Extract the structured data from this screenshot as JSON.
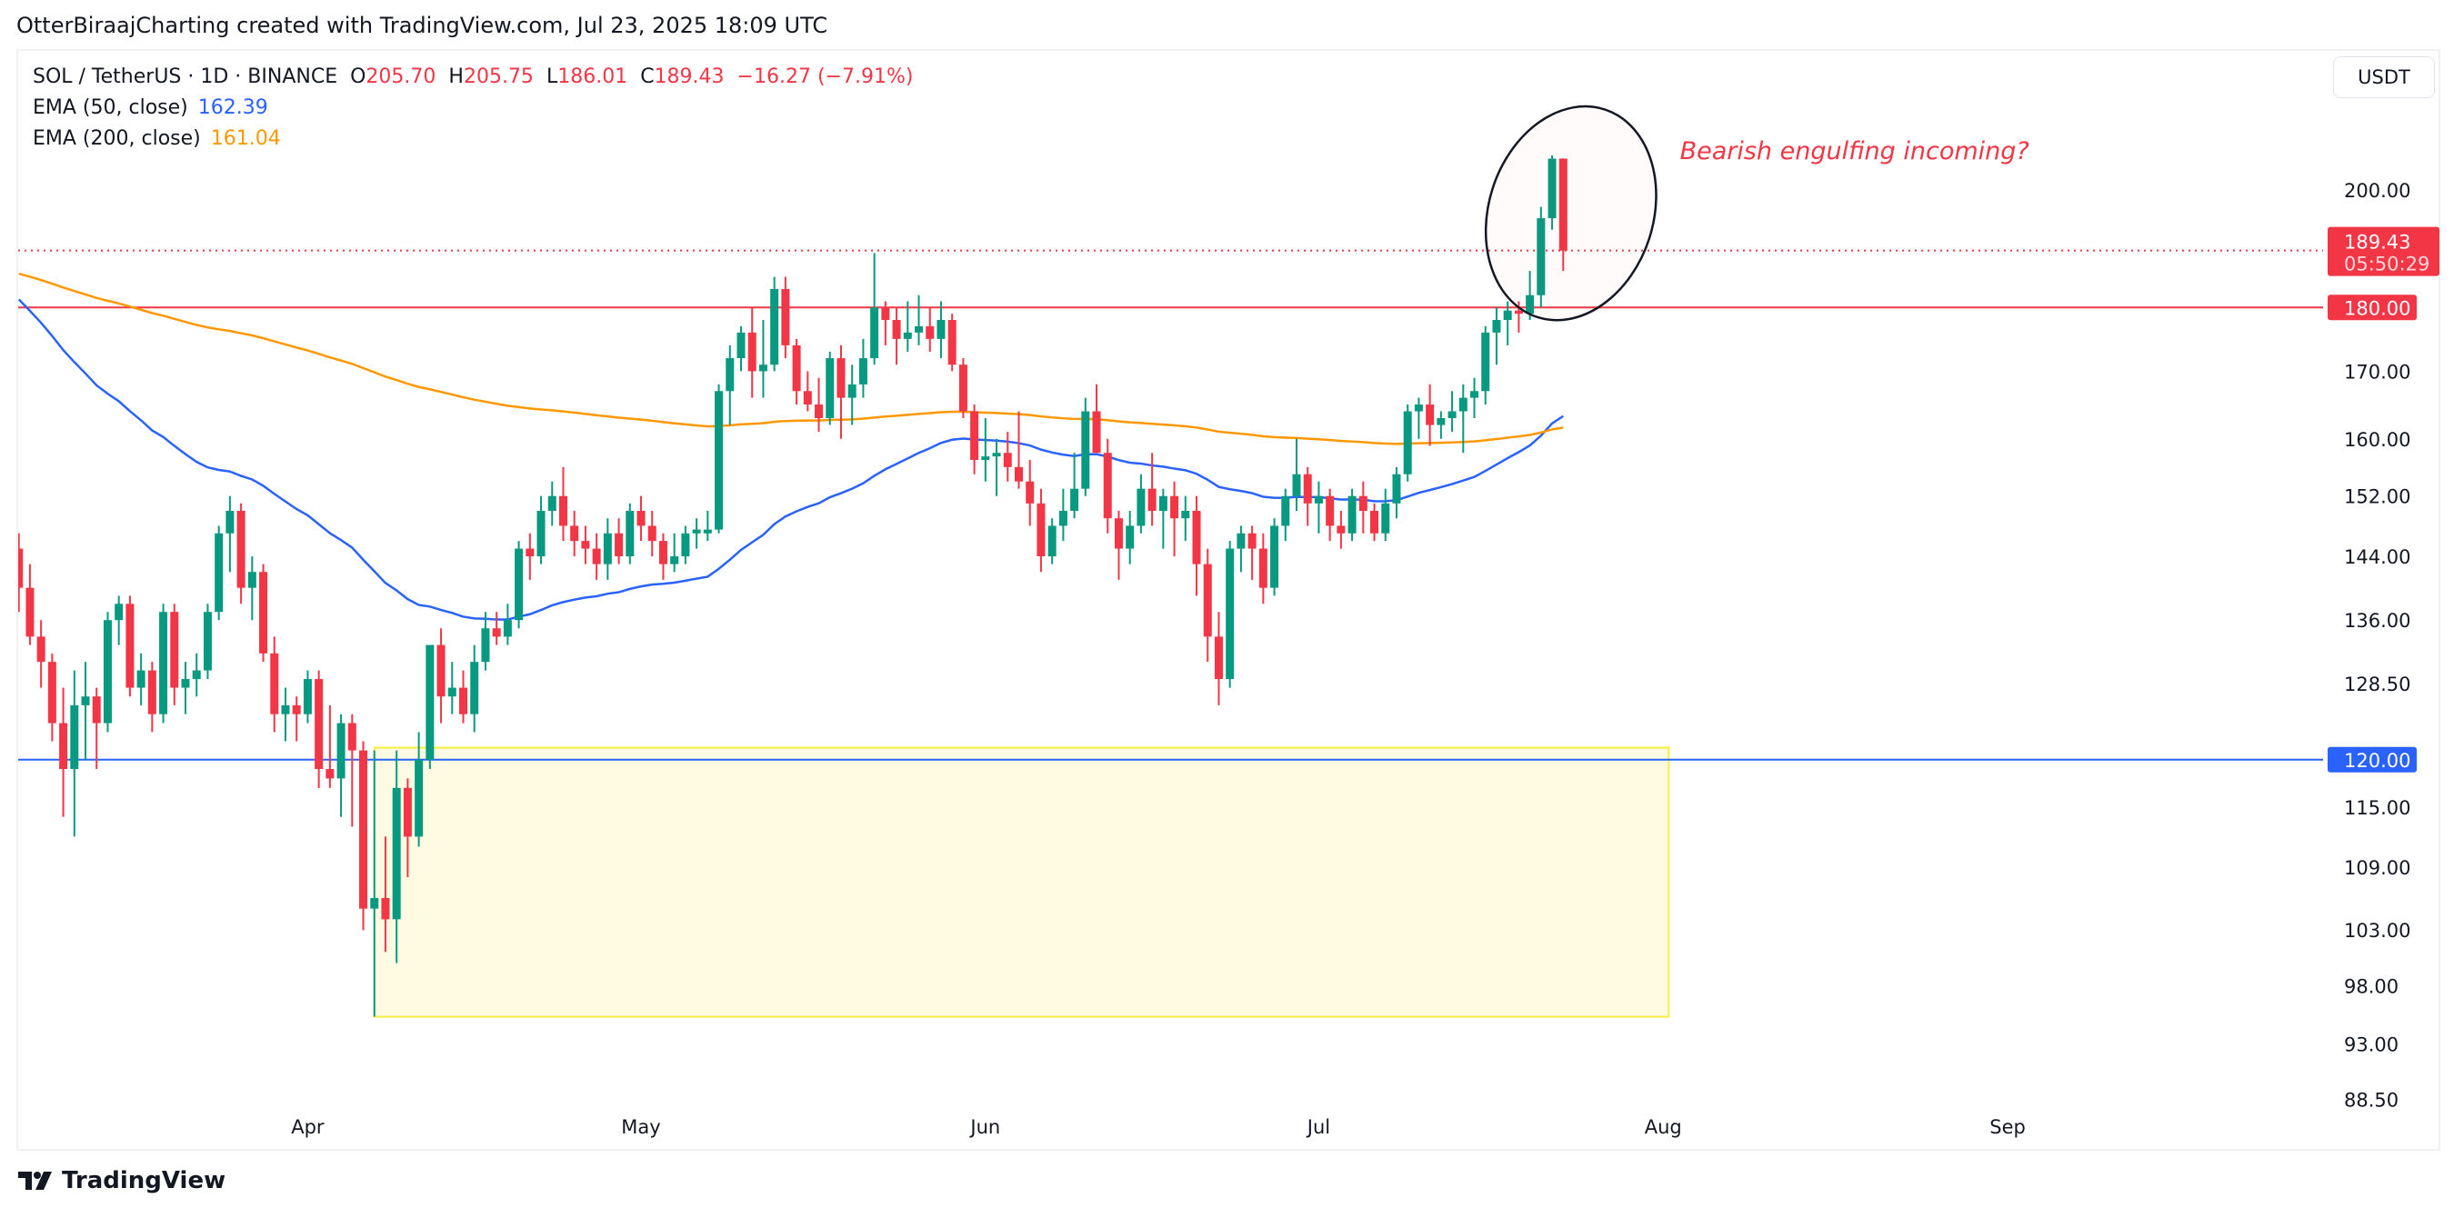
{
  "header": {
    "attribution": "OtterBiraajCharting created with TradingView.com, Jul 23, 2025 18:09 UTC"
  },
  "legend": {
    "symbol": "SOL / TetherUS · 1D · BINANCE",
    "o_label": "O",
    "o": "205.70",
    "h_label": "H",
    "h": "205.75",
    "l_label": "L",
    "l": "186.01",
    "c_label": "C",
    "c": "189.43",
    "change": "−16.27 (−7.91%)",
    "ema50_label": "EMA (50, close)",
    "ema50_value": "162.39",
    "ema200_label": "EMA (200, close)",
    "ema200_value": "161.04"
  },
  "currency_button": "USDT",
  "logo_text": "TradingView",
  "colors": {
    "up": "#089981",
    "down": "#f23645",
    "ema50": "#2962ff",
    "ema200": "#ff9800",
    "zone_fill": "#fffbe3",
    "zone_border": "#ffeb3b"
  },
  "chart_data": {
    "type": "candlestick",
    "title": "SOL / TetherUS · 1D · BINANCE",
    "scale": "log",
    "ylim": [
      86,
      228
    ],
    "first_date": "2025-03-06",
    "y_ticks": [
      "200.00",
      "170.00",
      "160.00",
      "152.00",
      "144.00",
      "136.00",
      "128.50",
      "115.00",
      "109.00",
      "103.00",
      "98.00",
      "93.00",
      "88.50"
    ],
    "y_tick_values": [
      200,
      170,
      160,
      152,
      144,
      136,
      128.5,
      115,
      109,
      103,
      98,
      93,
      88.5
    ],
    "x_ticks": [
      {
        "label": "Apr",
        "day": 26
      },
      {
        "label": "May",
        "day": 56
      },
      {
        "label": "Jun",
        "day": 87
      },
      {
        "label": "Jul",
        "day": 117
      },
      {
        "label": "Aug",
        "day": 148
      },
      {
        "label": "Sep",
        "day": 179
      }
    ],
    "last_price": {
      "value": 189.43,
      "label": "189.43",
      "countdown": "05:50:29"
    },
    "horizontal_lines": [
      {
        "value": 180,
        "label": "180.00",
        "color": "#f23645"
      },
      {
        "value": 120,
        "label": "120.00",
        "color": "#2962ff"
      }
    ],
    "zone": {
      "from_day": 32,
      "to_day": 148.5,
      "low": 95.3,
      "high": 121.3
    },
    "ellipse": {
      "center_day": 139.7,
      "half_width_days": 7.4,
      "top": 216,
      "bottom": 177.6
    },
    "annotation": {
      "text": "Bearish engulfing incoming?",
      "day": 149.5,
      "price": 207
    },
    "ema_seeds": {
      "ema50": 183,
      "ema200": 186
    },
    "candles": [
      [
        145,
        147,
        137,
        140
      ],
      [
        140,
        143,
        133,
        134
      ],
      [
        134,
        136,
        128,
        131
      ],
      [
        131,
        132,
        122,
        124
      ],
      [
        124,
        128,
        114,
        119
      ],
      [
        119,
        130,
        112,
        126
      ],
      [
        126,
        131,
        120,
        127
      ],
      [
        127,
        128,
        119,
        124
      ],
      [
        124,
        137,
        123,
        136
      ],
      [
        136,
        139,
        133,
        138
      ],
      [
        138,
        139,
        127,
        128
      ],
      [
        128,
        132,
        126,
        130
      ],
      [
        130,
        131,
        123,
        125
      ],
      [
        125,
        138,
        124,
        137
      ],
      [
        137,
        138,
        126,
        128
      ],
      [
        128,
        131,
        125,
        129
      ],
      [
        129,
        132,
        127,
        130
      ],
      [
        130,
        138,
        129,
        137
      ],
      [
        137,
        148,
        136,
        147
      ],
      [
        147,
        152,
        142,
        150
      ],
      [
        150,
        151,
        138,
        140
      ],
      [
        140,
        144,
        136,
        142
      ],
      [
        142,
        143,
        131,
        132
      ],
      [
        132,
        134,
        123,
        125
      ],
      [
        125,
        128,
        122,
        126
      ],
      [
        126,
        127,
        122,
        125
      ],
      [
        125,
        130,
        124,
        129
      ],
      [
        129,
        130,
        117,
        119
      ],
      [
        119,
        126,
        117,
        118
      ],
      [
        118,
        125,
        114,
        124
      ],
      [
        124,
        125,
        113,
        121
      ],
      [
        121,
        122,
        103,
        105
      ],
      [
        105,
        121,
        95.3,
        106
      ],
      [
        106,
        112,
        101,
        104
      ],
      [
        104,
        121,
        100,
        117
      ],
      [
        117,
        118,
        108,
        112
      ],
      [
        112,
        123,
        111,
        120
      ],
      [
        120,
        133,
        119,
        133
      ],
      [
        133,
        135,
        124,
        127
      ],
      [
        127,
        131,
        125,
        128
      ],
      [
        128,
        130,
        124,
        125
      ],
      [
        125,
        133,
        123,
        131
      ],
      [
        131,
        137,
        130,
        135
      ],
      [
        135,
        137,
        133,
        134
      ],
      [
        134,
        138,
        133,
        136
      ],
      [
        136,
        146,
        135,
        145
      ],
      [
        145,
        147,
        141,
        144
      ],
      [
        144,
        152,
        143,
        150
      ],
      [
        150,
        154,
        148,
        152
      ],
      [
        152,
        156,
        146,
        148
      ],
      [
        148,
        150,
        144,
        146
      ],
      [
        146,
        148,
        143,
        145
      ],
      [
        145,
        147,
        141,
        143
      ],
      [
        143,
        149,
        141,
        147
      ],
      [
        147,
        149,
        143,
        144
      ],
      [
        144,
        151,
        143,
        150
      ],
      [
        150,
        152,
        146,
        148
      ],
      [
        148,
        150,
        144,
        146
      ],
      [
        146,
        147,
        141,
        143
      ],
      [
        143,
        147,
        142,
        144
      ],
      [
        144,
        148,
        143,
        147
      ],
      [
        147,
        149,
        145,
        147.5
      ],
      [
        147,
        150,
        146,
        147.5
      ],
      [
        147.5,
        168,
        147,
        167
      ],
      [
        167,
        174,
        162,
        172
      ],
      [
        172,
        177,
        170,
        176
      ],
      [
        176,
        180,
        166,
        170
      ],
      [
        170,
        178,
        166,
        171
      ],
      [
        171,
        185,
        170,
        183
      ],
      [
        183,
        185,
        172,
        174
      ],
      [
        174,
        175,
        165,
        167
      ],
      [
        167,
        170,
        164,
        165
      ],
      [
        165,
        169,
        161,
        163
      ],
      [
        163,
        173,
        162,
        172
      ],
      [
        172,
        174,
        160,
        166
      ],
      [
        166,
        171,
        162,
        168
      ],
      [
        168,
        175,
        166,
        172
      ],
      [
        172,
        189,
        171,
        180
      ],
      [
        180,
        181,
        174,
        178
      ],
      [
        178,
        180,
        171,
        175
      ],
      [
        175,
        181,
        173,
        176
      ],
      [
        176,
        182,
        174,
        177
      ],
      [
        177,
        180,
        173,
        175
      ],
      [
        175,
        181,
        172,
        178
      ],
      [
        178,
        179,
        170,
        171
      ],
      [
        171,
        172,
        163,
        164
      ],
      [
        164,
        165,
        155,
        157
      ],
      [
        157,
        163,
        154,
        157.5
      ],
      [
        157.5,
        160,
        152,
        158
      ],
      [
        158,
        161,
        154,
        156
      ],
      [
        156,
        164,
        153,
        154
      ],
      [
        154,
        157,
        148,
        151
      ],
      [
        151,
        153,
        142,
        144
      ],
      [
        144,
        149,
        143,
        148
      ],
      [
        148,
        153,
        146,
        150
      ],
      [
        150,
        158,
        149,
        153
      ],
      [
        153,
        166,
        152,
        164
      ],
      [
        164,
        168,
        158,
        158
      ],
      [
        158,
        160,
        147,
        149
      ],
      [
        149,
        150,
        141,
        145
      ],
      [
        145,
        150,
        143,
        148
      ],
      [
        148,
        155,
        147,
        153
      ],
      [
        153,
        158,
        148,
        150
      ],
      [
        150,
        153,
        145,
        152
      ],
      [
        152,
        154,
        144,
        149
      ],
      [
        149,
        152,
        146,
        150
      ],
      [
        150,
        152,
        139,
        143
      ],
      [
        143,
        145,
        131,
        134
      ],
      [
        134,
        137,
        126,
        129
      ],
      [
        129,
        146,
        128,
        145
      ],
      [
        145,
        148,
        142,
        147
      ],
      [
        147,
        148,
        141,
        145
      ],
      [
        145,
        147,
        138,
        140
      ],
      [
        140,
        149,
        139,
        148
      ],
      [
        148,
        153,
        146,
        152
      ],
      [
        152,
        160,
        150,
        155
      ],
      [
        155,
        156,
        148,
        151
      ],
      [
        151,
        154,
        147,
        152
      ],
      [
        152,
        153,
        146,
        148
      ],
      [
        148,
        150,
        145,
        147
      ],
      [
        147,
        153,
        146,
        152
      ],
      [
        152,
        154,
        147,
        150
      ],
      [
        150,
        151,
        146,
        147
      ],
      [
        147,
        153,
        146,
        151
      ],
      [
        151,
        156,
        149,
        155
      ],
      [
        155,
        165,
        154,
        164
      ],
      [
        164,
        166,
        160,
        165
      ],
      [
        165,
        168,
        159,
        162
      ],
      [
        162,
        164,
        160,
        163
      ],
      [
        163,
        167,
        161,
        164
      ],
      [
        164,
        168,
        158,
        166
      ],
      [
        166,
        169,
        163,
        167
      ],
      [
        167,
        177,
        165,
        176
      ],
      [
        176,
        180,
        171,
        178
      ],
      [
        178,
        181,
        174,
        179.5
      ],
      [
        179.5,
        181,
        176,
        179
      ],
      [
        179,
        186,
        178,
        182
      ],
      [
        182,
        197,
        180,
        195
      ],
      [
        195,
        206.3,
        193,
        205.7
      ],
      [
        205.7,
        205.75,
        186.01,
        189.43
      ]
    ]
  }
}
